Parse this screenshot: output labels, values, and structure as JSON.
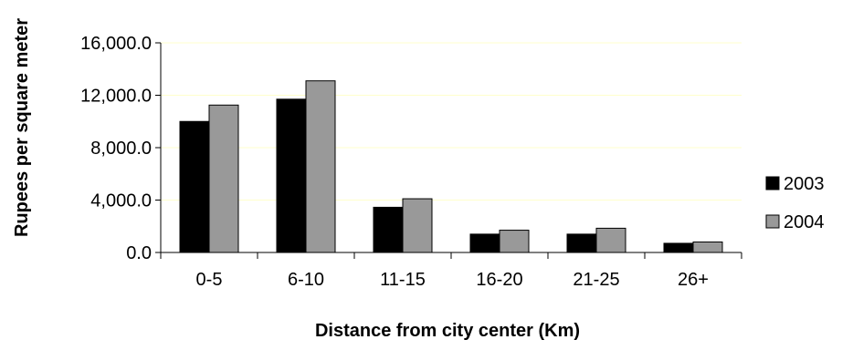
{
  "chart_data": {
    "type": "bar",
    "title": "",
    "xlabel": "Distance from city center (Km)",
    "ylabel": "Rupees per square meter",
    "categories": [
      "0-5",
      "6-10",
      "11-15",
      "16-20",
      "21-25",
      "26+"
    ],
    "series": [
      {
        "name": "2003",
        "color": "#000000",
        "values": [
          10000,
          11700,
          3450,
          1400,
          1400,
          700
        ]
      },
      {
        "name": "2004",
        "color": "#999999",
        "values": [
          11250,
          13100,
          4100,
          1700,
          1850,
          800
        ]
      }
    ],
    "ylim": [
      0,
      16000
    ],
    "yticks": [
      0,
      4000,
      8000,
      12000,
      16000
    ],
    "ytick_labels": [
      "0.0",
      "4,000.0",
      "8,000.0",
      "12,000.0",
      "16,000.0"
    ],
    "gridlines": true,
    "gridline_color": "#ffffcc",
    "legend_position": "right"
  }
}
